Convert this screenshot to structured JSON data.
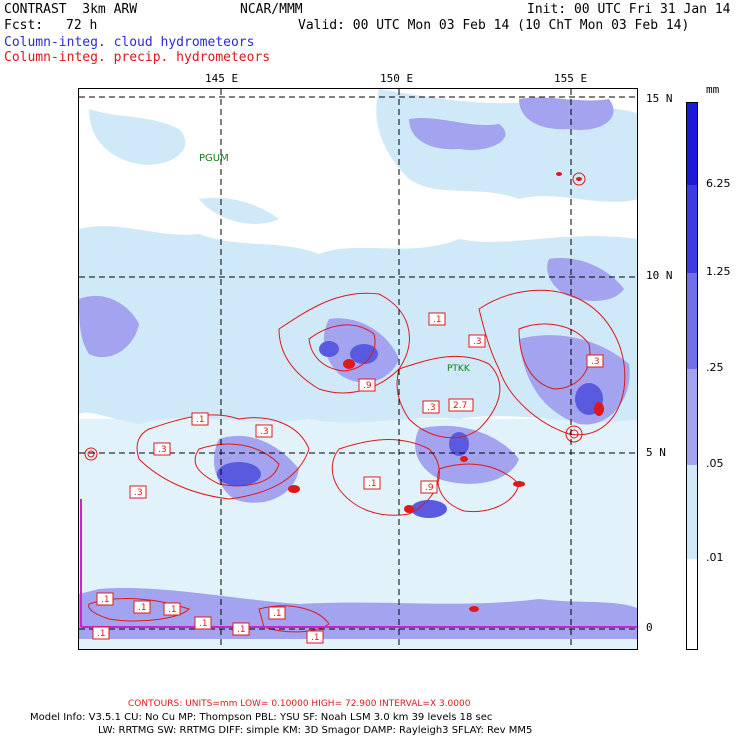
{
  "header": {
    "model": "CONTRAST  3km ARW",
    "center": "NCAR/MMM",
    "init": "Init: 00 UTC Fri 31 Jan 14",
    "fcst_label": "Fcst:",
    "fcst_value": "72 h",
    "valid": "Valid: 00 UTC Mon 03 Feb 14 (10 ChT Mon 03 Feb 14)",
    "field1": "Column-integ. cloud hydrometeors",
    "field2": "Column-integ. precip. hydrometeors"
  },
  "map": {
    "lon_labels": [
      "145 E",
      "150 E",
      "155 E"
    ],
    "lat_labels": [
      "15 N",
      "10 N",
      "5 N",
      "0"
    ],
    "stations": [
      "PGUM",
      "PTKK"
    ],
    "contour_labels": [
      ".1",
      ".3",
      ".1",
      ".3",
      ".1",
      ".3",
      ".9",
      ".3",
      "2.7",
      ".3",
      ".1",
      ".3",
      ".1",
      ".1",
      ".1",
      ".9",
      ".1",
      ".1",
      ".1",
      ".1",
      ".1",
      ".1"
    ]
  },
  "colorbar": {
    "unit": "mm",
    "levels": [
      "6.25",
      "1.25",
      ".25",
      ".05",
      ".01"
    ],
    "colors": [
      "#1a1ad8",
      "#3c3ce6",
      "#6f6fe8",
      "#a3a3f0",
      "#cfe9f8",
      "#ffffff"
    ]
  },
  "footer": {
    "contours": "CONTOURS:  UNITS=mm  LOW= 0.10000      HIGH=  72.900      INTERVAL=X  3.0000",
    "model_info_1": "Model Info: V3.5.1    CU: No Cu     MP: Thompson     PBL: YSU       SF: Noah LSM     3.0 km   39 levels    18 sec",
    "model_info_2": "LW: RRTMG    SW: RRTMG   DIFF: simple KM: 3D Smagor DAMP: Rayleigh3  SFLAY: Rev MM5"
  }
}
